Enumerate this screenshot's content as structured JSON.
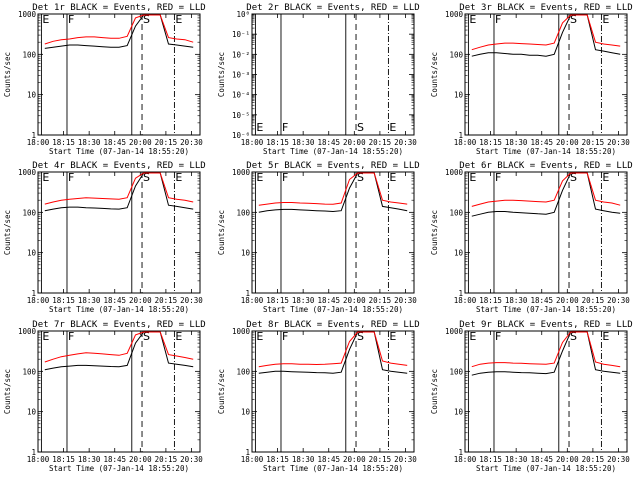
{
  "chart_data": [
    {
      "panel": "1r",
      "title": "Det 1r BLACK = Events, RED = LLD",
      "ylabel": "Counts/sec",
      "xlabel": "Start Time (07-Jan-14 18:55:20)",
      "ylim": [
        1,
        1000
      ],
      "ylog": true,
      "xlim": [
        "18:00",
        "20:35"
      ],
      "xticks": [
        "18:00",
        "18:15",
        "18:30",
        "18:45",
        "20:00",
        "20:15",
        "20:30"
      ],
      "yticks": [
        "1",
        "10",
        "100",
        "1000"
      ],
      "flag_labels": [
        "E",
        "F",
        "S",
        "E"
      ],
      "flags": [
        "18:00",
        "18:13",
        "19:47",
        "20:21"
      ],
      "flag_styles": [
        "solid",
        "solid",
        "dash",
        "dashdot"
      ],
      "series": [
        {
          "name": "BLACK = Events",
          "color": "#000000",
          "values": [
            140,
            150,
            160,
            170,
            170,
            165,
            160,
            155,
            150,
            150,
            165,
            500,
            1000,
            1000,
            1000,
            180,
            170,
            160,
            150
          ]
        },
        {
          "name": "RED = LLD",
          "color": "#ff0000",
          "values": [
            180,
            210,
            230,
            240,
            260,
            270,
            270,
            260,
            250,
            250,
            280,
            800,
            1000,
            1000,
            1000,
            260,
            240,
            230,
            200
          ]
        }
      ]
    },
    {
      "panel": "2r",
      "title": "Det 2r BLACK = Events, RED = LLD",
      "ylabel": "Counts/sec",
      "xlabel": "Start Time (07-Jan-14 18:55:20)",
      "ylim": [
        1e-06,
        1
      ],
      "ylog": true,
      "xlim": [
        "18:00",
        "20:35"
      ],
      "xticks": [
        "18:00",
        "18:15",
        "18:30",
        "18:45",
        "20:00",
        "20:15",
        "20:30"
      ],
      "yticks": [
        "10⁻⁶",
        "10⁻⁵",
        "10⁻⁴",
        "10⁻³",
        "10⁻²",
        "10⁻¹",
        "10⁰"
      ],
      "flag_labels": [
        "E",
        "F",
        "S",
        "E"
      ],
      "flags": [
        "18:00",
        "18:13",
        "19:47",
        "20:21"
      ],
      "flag_styles": [
        "solid",
        "solid",
        "dash",
        "dashdot"
      ],
      "series": []
    },
    {
      "panel": "3r",
      "title": "Det 3r BLACK = Events, RED = LLD",
      "ylabel": "Counts/sec",
      "xlabel": "Start Time (07-Jan-14 18:55:20)",
      "ylim": [
        1,
        1000
      ],
      "ylog": true,
      "xlim": [
        "18:00",
        "20:35"
      ],
      "xticks": [
        "18:00",
        "18:15",
        "18:30",
        "18:45",
        "20:00",
        "20:15",
        "20:30"
      ],
      "yticks": [
        "1",
        "10",
        "100",
        "1000"
      ],
      "flag_labels": [
        "E",
        "F",
        "S",
        "E"
      ],
      "flags": [
        "18:00",
        "18:13",
        "19:47",
        "20:21"
      ],
      "flag_styles": [
        "solid",
        "solid",
        "dash",
        "dashdot"
      ],
      "series": [
        {
          "name": "BLACK = Events",
          "color": "#000000",
          "values": [
            90,
            100,
            110,
            110,
            105,
            100,
            100,
            95,
            95,
            90,
            100,
            350,
            1000,
            1000,
            1000,
            130,
            120,
            110,
            100
          ]
        },
        {
          "name": "RED = LLD",
          "color": "#ff0000",
          "values": [
            130,
            150,
            170,
            180,
            190,
            190,
            185,
            180,
            175,
            170,
            190,
            600,
            1000,
            1000,
            1000,
            200,
            180,
            170,
            160
          ]
        }
      ]
    },
    {
      "panel": "4r",
      "title": "Det 4r BLACK = Events, RED = LLD",
      "ylabel": "Counts/sec",
      "xlabel": "Start Time (07-Jan-14 18:55:20)",
      "ylim": [
        1,
        1000
      ],
      "ylog": true,
      "xlim": [
        "18:00",
        "20:35"
      ],
      "xticks": [
        "18:00",
        "18:15",
        "18:30",
        "18:45",
        "20:00",
        "20:15",
        "20:30"
      ],
      "yticks": [
        "1",
        "10",
        "100",
        "1000"
      ],
      "flag_labels": [
        "E",
        "F",
        "S",
        "E"
      ],
      "flags": [
        "18:00",
        "18:13",
        "19:47",
        "20:21"
      ],
      "flag_styles": [
        "solid",
        "solid",
        "dash",
        "dashdot"
      ],
      "series": [
        {
          "name": "BLACK = Events",
          "color": "#000000",
          "values": [
            110,
            120,
            130,
            135,
            135,
            130,
            128,
            125,
            122,
            120,
            130,
            450,
            1000,
            1000,
            1000,
            150,
            140,
            130,
            120
          ]
        },
        {
          "name": "RED = LLD",
          "color": "#ff0000",
          "values": [
            160,
            180,
            200,
            210,
            220,
            230,
            225,
            220,
            215,
            210,
            230,
            700,
            1000,
            1000,
            1000,
            230,
            210,
            200,
            180
          ]
        }
      ]
    },
    {
      "panel": "5r",
      "title": "Det 5r BLACK = Events, RED = LLD",
      "ylabel": "Counts/sec",
      "xlabel": "Start Time (07-Jan-14 18:55:20)",
      "ylim": [
        1,
        1000
      ],
      "ylog": true,
      "xlim": [
        "18:00",
        "20:35"
      ],
      "xticks": [
        "18:00",
        "18:15",
        "18:30",
        "18:45",
        "20:00",
        "20:15",
        "20:30"
      ],
      "yticks": [
        "1",
        "10",
        "100",
        "1000"
      ],
      "flag_labels": [
        "E",
        "F",
        "S",
        "E"
      ],
      "flags": [
        "18:00",
        "18:13",
        "19:47",
        "20:21"
      ],
      "flag_styles": [
        "solid",
        "solid",
        "dash",
        "dashdot"
      ],
      "series": [
        {
          "name": "BLACK = Events",
          "color": "#000000",
          "values": [
            100,
            110,
            115,
            118,
            118,
            115,
            112,
            110,
            108,
            105,
            110,
            400,
            1000,
            1000,
            1000,
            140,
            130,
            120,
            110
          ]
        },
        {
          "name": "RED = LLD",
          "color": "#ff0000",
          "values": [
            150,
            160,
            170,
            175,
            175,
            170,
            168,
            165,
            160,
            158,
            170,
            650,
            1000,
            1000,
            1000,
            200,
            180,
            170,
            160
          ]
        }
      ]
    },
    {
      "panel": "6r",
      "title": "Det 6r BLACK = Events, RED = LLD",
      "ylabel": "Counts/sec",
      "xlabel": "Start Time (07-Jan-14 18:55:20)",
      "ylim": [
        1,
        1000
      ],
      "ylog": true,
      "xlim": [
        "18:00",
        "20:35"
      ],
      "xticks": [
        "18:00",
        "18:15",
        "18:30",
        "18:45",
        "20:00",
        "20:15",
        "20:30"
      ],
      "yticks": [
        "1",
        "10",
        "100",
        "1000"
      ],
      "flag_labels": [
        "E",
        "F",
        "S",
        "E"
      ],
      "flags": [
        "18:00",
        "18:13",
        "19:47",
        "20:21"
      ],
      "flag_styles": [
        "solid",
        "solid",
        "dash",
        "dashdot"
      ],
      "series": [
        {
          "name": "BLACK = Events",
          "color": "#000000",
          "values": [
            80,
            90,
            100,
            105,
            105,
            100,
            98,
            95,
            92,
            90,
            100,
            350,
            1000,
            1000,
            1000,
            120,
            110,
            100,
            95
          ]
        },
        {
          "name": "RED = LLD",
          "color": "#ff0000",
          "values": [
            140,
            160,
            180,
            190,
            200,
            200,
            195,
            190,
            185,
            180,
            200,
            600,
            1000,
            1000,
            1000,
            200,
            180,
            170,
            150
          ]
        }
      ]
    },
    {
      "panel": "7r",
      "title": "Det 7r BLACK = Events, RED = LLD",
      "ylabel": "Counts/sec",
      "xlabel": "Start Time (07-Jan-14 18:55:20)",
      "ylim": [
        1,
        1000
      ],
      "ylog": true,
      "xlim": [
        "18:00",
        "20:35"
      ],
      "xticks": [
        "18:00",
        "18:15",
        "18:30",
        "18:45",
        "20:00",
        "20:15",
        "20:30"
      ],
      "yticks": [
        "1",
        "10",
        "100",
        "1000"
      ],
      "flag_labels": [
        "E",
        "F",
        "S",
        "E"
      ],
      "flags": [
        "18:00",
        "18:13",
        "19:47",
        "20:21"
      ],
      "flag_styles": [
        "solid",
        "solid",
        "dash",
        "dashdot"
      ],
      "series": [
        {
          "name": "BLACK = Events",
          "color": "#000000",
          "values": [
            110,
            120,
            130,
            135,
            140,
            140,
            138,
            135,
            132,
            130,
            140,
            500,
            1000,
            1000,
            1000,
            160,
            150,
            140,
            130
          ]
        },
        {
          "name": "RED = LLD",
          "color": "#ff0000",
          "values": [
            170,
            200,
            230,
            250,
            270,
            290,
            280,
            270,
            260,
            250,
            280,
            800,
            1000,
            1000,
            1000,
            260,
            240,
            220,
            200
          ]
        }
      ]
    },
    {
      "panel": "8r",
      "title": "Det 8r BLACK = Events, RED = LLD",
      "ylabel": "Counts/sec",
      "xlabel": "Start Time (07-Jan-14 18:55:20)",
      "ylim": [
        1,
        1000
      ],
      "ylog": true,
      "xlim": [
        "18:00",
        "20:35"
      ],
      "xticks": [
        "18:00",
        "18:15",
        "18:30",
        "18:45",
        "20:00",
        "20:15",
        "20:30"
      ],
      "yticks": [
        "1",
        "10",
        "100",
        "1000"
      ],
      "flag_labels": [
        "E",
        "F",
        "S",
        "E"
      ],
      "flags": [
        "18:00",
        "18:13",
        "19:47",
        "20:21"
      ],
      "flag_styles": [
        "solid",
        "solid",
        "dash",
        "dashdot"
      ],
      "series": [
        {
          "name": "BLACK = Events",
          "color": "#000000",
          "values": [
            90,
            95,
            100,
            100,
            98,
            96,
            95,
            93,
            92,
            90,
            95,
            350,
            1000,
            1000,
            1000,
            110,
            100,
            95,
            90
          ]
        },
        {
          "name": "RED = LLD",
          "color": "#ff0000",
          "values": [
            130,
            140,
            150,
            155,
            155,
            150,
            150,
            148,
            150,
            155,
            160,
            550,
            1000,
            1000,
            1000,
            180,
            160,
            150,
            140
          ]
        }
      ]
    },
    {
      "panel": "9r",
      "title": "Det 9r BLACK = Events, RED = LLD",
      "ylabel": "Counts/sec",
      "xlabel": "Start Time (07-Jan-14 18:55:20)",
      "ylim": [
        1,
        1000
      ],
      "ylog": true,
      "xlim": [
        "18:00",
        "20:35"
      ],
      "xticks": [
        "18:00",
        "18:15",
        "18:30",
        "18:45",
        "20:00",
        "20:15",
        "20:30"
      ],
      "yticks": [
        "1",
        "10",
        "100",
        "1000"
      ],
      "flag_labels": [
        "E",
        "F",
        "S",
        "E"
      ],
      "flags": [
        "18:00",
        "18:13",
        "19:47",
        "20:21"
      ],
      "flag_styles": [
        "solid",
        "solid",
        "dash",
        "dashdot"
      ],
      "series": [
        {
          "name": "BLACK = Events",
          "color": "#000000",
          "values": [
            80,
            90,
            95,
            98,
            98,
            95,
            93,
            92,
            90,
            88,
            95,
            320,
            1000,
            1000,
            1000,
            110,
            100,
            95,
            90
          ]
        },
        {
          "name": "RED = LLD",
          "color": "#ff0000",
          "values": [
            130,
            150,
            160,
            165,
            165,
            160,
            158,
            155,
            152,
            150,
            160,
            520,
            1000,
            1000,
            1000,
            170,
            150,
            140,
            130
          ]
        }
      ]
    }
  ]
}
